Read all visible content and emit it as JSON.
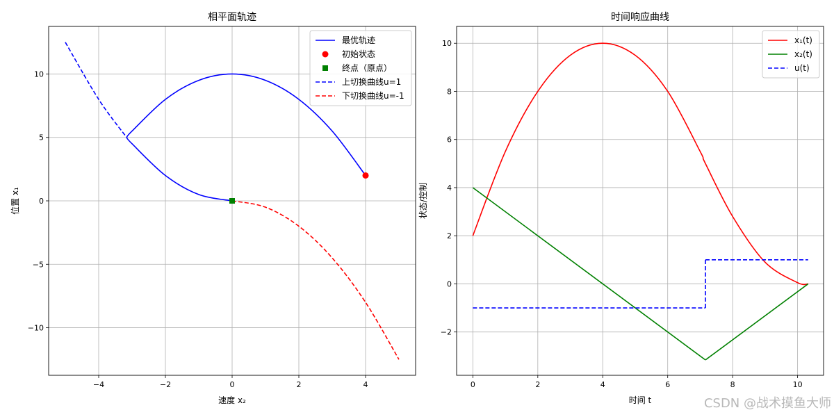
{
  "watermark": "CSDN @战术摸鱼大师",
  "chart_data": [
    {
      "type": "line",
      "title": "相平面轨迹",
      "xlabel": "速度 x₂",
      "ylabel": "位置 x₁",
      "xlim": [
        -5.5,
        5.5
      ],
      "ylim": [
        -13.75,
        13.75
      ],
      "xticks": [
        -4,
        -2,
        0,
        2,
        4
      ],
      "xtick_labels": [
        "−4",
        "−2",
        "0",
        "2",
        "4"
      ],
      "yticks": [
        -10,
        -5,
        0,
        5,
        10
      ],
      "ytick_labels": [
        "−10",
        "−5",
        "0",
        "5",
        "10"
      ],
      "grid": true,
      "legend_position": "top-right",
      "series": [
        {
          "name": "最优轨迹",
          "kind": "line",
          "color": "#0000ff",
          "dash": "solid",
          "x": [
            4,
            3,
            2,
            1,
            0,
            -1,
            -2,
            -3,
            -3.162,
            -3,
            -2,
            -1,
            0
          ],
          "y": [
            2,
            5.5,
            8,
            9.5,
            10,
            9.5,
            8,
            5.5,
            5,
            4.5,
            2,
            0.5,
            0
          ]
        },
        {
          "name": "初始状态",
          "kind": "scatter",
          "marker": "circle",
          "color": "#ff0000",
          "x": [
            4
          ],
          "y": [
            2
          ]
        },
        {
          "name": "终点（原点）",
          "kind": "scatter",
          "marker": "square",
          "color": "#008000",
          "x": [
            0
          ],
          "y": [
            0
          ]
        },
        {
          "name": "上切换曲线u=1",
          "kind": "line",
          "color": "#0000ff",
          "dash": "dashed",
          "x": [
            -5,
            -4,
            -3.162
          ],
          "y": [
            12.5,
            8,
            5
          ]
        },
        {
          "name": "下切换曲线u=-1",
          "kind": "line",
          "color": "#ff0000",
          "dash": "dashed",
          "x": [
            0,
            1,
            2,
            3,
            4,
            5
          ],
          "y": [
            0,
            -0.5,
            -2,
            -4.5,
            -8,
            -12.5
          ]
        }
      ]
    },
    {
      "type": "line",
      "title": "时间响应曲线",
      "xlabel": "时间 t",
      "ylabel": "状态/控制",
      "xlim": [
        -0.5,
        10.8
      ],
      "ylim": [
        -3.8,
        10.7
      ],
      "xticks": [
        0,
        2,
        4,
        6,
        8,
        10
      ],
      "xtick_labels": [
        "0",
        "2",
        "4",
        "6",
        "8",
        "10"
      ],
      "yticks": [
        -2,
        0,
        2,
        4,
        6,
        8,
        10
      ],
      "ytick_labels": [
        "−2",
        "0",
        "2",
        "4",
        "6",
        "8",
        "10"
      ],
      "grid": true,
      "legend_position": "top-right",
      "series": [
        {
          "name": "x₁(t)",
          "kind": "line",
          "color": "#ff0000",
          "dash": "solid",
          "x": [
            0,
            1,
            2,
            3,
            4,
            5,
            6,
            7,
            7.162,
            8,
            9,
            10,
            10.325
          ],
          "y": [
            2,
            5.5,
            8,
            9.5,
            10,
            9.5,
            8,
            5.5,
            5,
            2.8,
            0.9,
            0.05,
            0
          ]
        },
        {
          "name": "x₂(t)",
          "kind": "line",
          "color": "#008000",
          "dash": "solid",
          "x": [
            0,
            7.162,
            10.325
          ],
          "y": [
            4,
            -3.162,
            0
          ]
        },
        {
          "name": "u(t)",
          "kind": "line",
          "color": "#0000ff",
          "dash": "dashed",
          "x": [
            0,
            7.162,
            7.162,
            10.325
          ],
          "y": [
            -1,
            -1,
            1,
            1
          ]
        }
      ]
    }
  ]
}
